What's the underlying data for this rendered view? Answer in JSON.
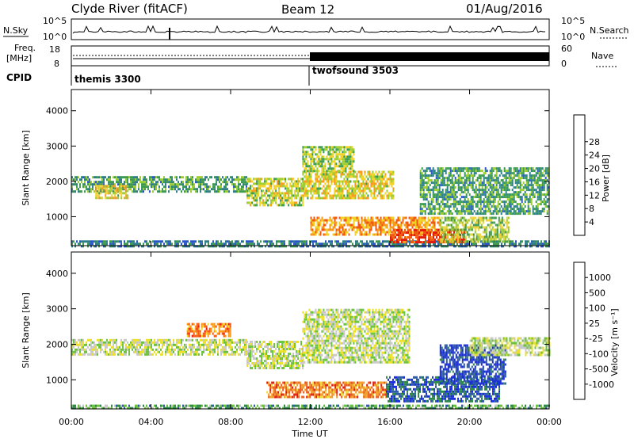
{
  "header": {
    "title": "Clyde River (fitACF)",
    "beam": "Beam 12",
    "date": "01/Aug/2016"
  },
  "top_panels": {
    "nsky_label": "N.Sky",
    "nsky_ticks": [
      "10^5",
      "10^0"
    ],
    "nsky_right_ticks": [
      "10^5",
      "10^0"
    ],
    "nsearch_label": "N.Search",
    "freq_label": "Freq.",
    "freq_unit": "[MHz]",
    "freq_ticks": [
      "18",
      "8"
    ],
    "nave_label": "Nave",
    "nave_ticks": [
      "60",
      "0"
    ],
    "cpid_label": "CPID",
    "cpid_segments": [
      {
        "name": "themis 3300",
        "start_hour": 0
      },
      {
        "name": "twofsound 3503",
        "start_hour": 12
      }
    ]
  },
  "chart_data": [
    {
      "type": "heatmap",
      "name": "power",
      "ylabel": "Slant Range [km]",
      "xlabel": "",
      "xlim": [
        0,
        24
      ],
      "ylim": [
        180,
        4600
      ],
      "yticks": [
        1000,
        2000,
        3000,
        4000
      ],
      "x_tick_labels": [
        "00:00",
        "04:00",
        "08:00",
        "12:00",
        "16:00",
        "20:00",
        "00:00"
      ],
      "colorbar": {
        "label": "Power [dB]",
        "ticks": [
          "4",
          "8",
          "12",
          "16",
          "20",
          "24",
          "28"
        ],
        "colors": [
          "#0a1ee8",
          "#2a55c8",
          "#2e7e88",
          "#3e9a4e",
          "#9ccc32",
          "#f0d22a",
          "#f59a1e",
          "#ee5a12",
          "#e41a0a"
        ]
      },
      "bands": [
        {
          "hour_start": 0.0,
          "hour_end": 24.0,
          "range_lo": 180,
          "range_hi": 330,
          "level": 0.25
        },
        {
          "hour_start": 0.0,
          "hour_end": 8.8,
          "range_lo": 1700,
          "range_hi": 2150,
          "level": 0.35
        },
        {
          "hour_start": 1.2,
          "hour_end": 2.8,
          "range_lo": 1550,
          "range_hi": 1900,
          "level": 0.6
        },
        {
          "hour_start": 8.8,
          "hour_end": 11.6,
          "range_lo": 1300,
          "range_hi": 2100,
          "level": 0.55
        },
        {
          "hour_start": 11.6,
          "hour_end": 16.2,
          "range_lo": 1500,
          "range_hi": 2300,
          "level": 0.6
        },
        {
          "hour_start": 11.6,
          "hour_end": 14.2,
          "range_lo": 2300,
          "range_hi": 3000,
          "level": 0.5
        },
        {
          "hour_start": 12.0,
          "hour_end": 18.5,
          "range_lo": 500,
          "range_hi": 1000,
          "level": 0.75
        },
        {
          "hour_start": 16.0,
          "hour_end": 19.8,
          "range_lo": 250,
          "range_hi": 650,
          "level": 0.95
        },
        {
          "hour_start": 18.5,
          "hour_end": 22.0,
          "range_lo": 300,
          "range_hi": 1000,
          "level": 0.5
        },
        {
          "hour_start": 17.5,
          "hour_end": 24.0,
          "range_lo": 1100,
          "range_hi": 2400,
          "level": 0.35
        }
      ]
    },
    {
      "type": "heatmap",
      "name": "velocity",
      "ylabel": "Slant Range [km]",
      "xlabel": "Time UT",
      "xlim": [
        0,
        24
      ],
      "ylim": [
        180,
        4600
      ],
      "yticks": [
        1000,
        2000,
        3000,
        4000
      ],
      "x_tick_labels": [
        "00:00",
        "04:00",
        "08:00",
        "12:00",
        "16:00",
        "20:00",
        "00:00"
      ],
      "colorbar": {
        "label": "Velocity [m s⁻¹]",
        "ticks": [
          "1000",
          "500",
          "100",
          "25",
          "-25",
          "-100",
          "-500",
          "-1000"
        ],
        "colors": [
          "#1a2ee0",
          "#2e5aa8",
          "#2f8a4a",
          "#6cc23c",
          "#c8c8c8",
          "#ece02a",
          "#f59a1e",
          "#ee5a12",
          "#e41a0a"
        ]
      },
      "bands": [
        {
          "hour_start": 0.0,
          "hour_end": 24.0,
          "range_lo": 180,
          "range_hi": 300,
          "level": 0.33
        },
        {
          "hour_start": 0.0,
          "hour_end": 8.8,
          "range_lo": 1700,
          "range_hi": 2150,
          "level": 0.5
        },
        {
          "hour_start": 8.8,
          "hour_end": 11.6,
          "range_lo": 1300,
          "range_hi": 2100,
          "level": 0.5
        },
        {
          "hour_start": 11.6,
          "hour_end": 17.0,
          "range_lo": 1500,
          "range_hi": 3000,
          "level": 0.5
        },
        {
          "hour_start": 9.8,
          "hour_end": 15.8,
          "range_lo": 500,
          "range_hi": 950,
          "level": 0.82
        },
        {
          "hour_start": 15.8,
          "hour_end": 21.5,
          "range_lo": 400,
          "range_hi": 1100,
          "level": 0.12
        },
        {
          "hour_start": 18.5,
          "hour_end": 21.8,
          "range_lo": 900,
          "range_hi": 2000,
          "level": 0.05
        },
        {
          "hour_start": 5.8,
          "hour_end": 8.0,
          "range_lo": 2200,
          "range_hi": 2600,
          "level": 0.8
        },
        {
          "hour_start": 20.0,
          "hour_end": 24.0,
          "range_lo": 1700,
          "range_hi": 2200,
          "level": 0.5
        }
      ]
    }
  ]
}
